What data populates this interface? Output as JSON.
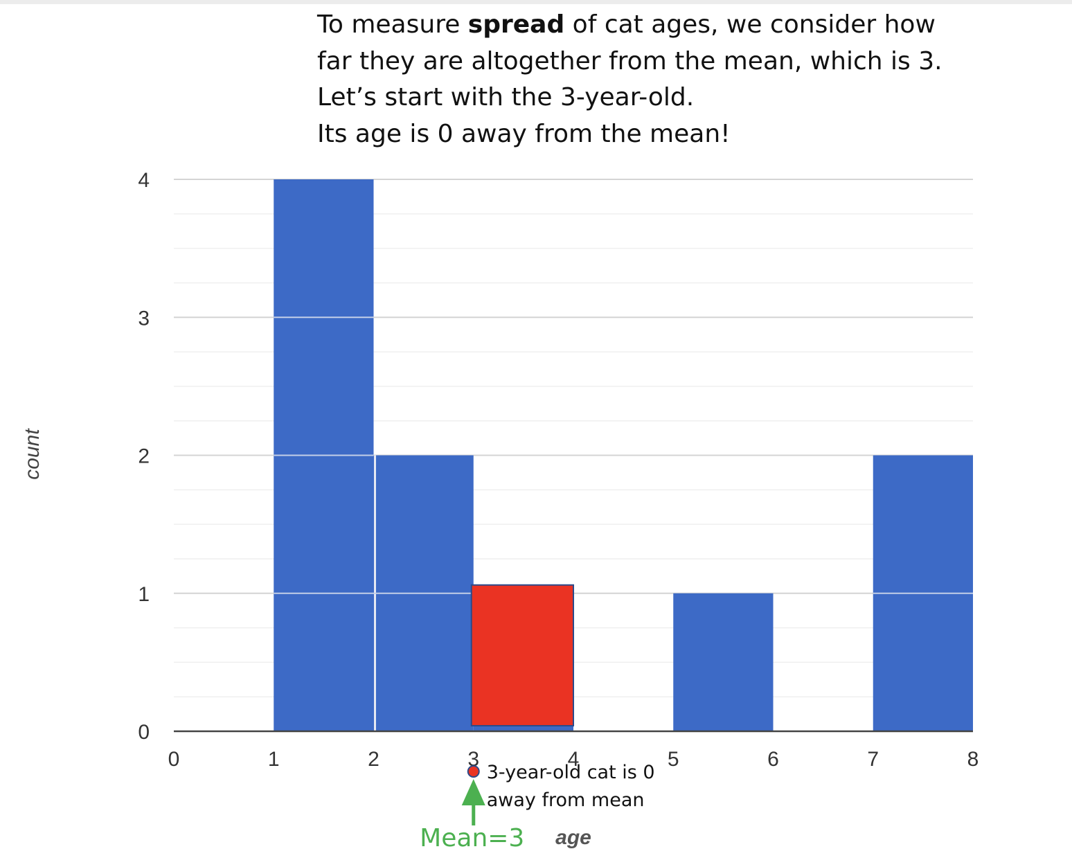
{
  "intro": {
    "line1_pre": "To measure ",
    "line1_bold": "spread",
    "line1_post": " of cat ages, we consider how",
    "line2": "far they are altogether from the mean, which is 3.",
    "line3": "Let’s start with the 3-year-old.",
    "line4": "Its age is 0 away from the mean!"
  },
  "chart_data": {
    "type": "bar",
    "title": "",
    "xlabel": "age",
    "ylabel": "count",
    "xlim": [
      0,
      8
    ],
    "ylim": [
      0,
      4
    ],
    "x_ticks": [
      0,
      1,
      2,
      3,
      4,
      5,
      6,
      7,
      8
    ],
    "y_ticks": [
      0,
      1,
      2,
      3,
      4
    ],
    "grid": true,
    "minor_grid_per_unit": 4,
    "bar_color": "#3d6ac6",
    "bins": [
      {
        "start": 1,
        "end": 2,
        "count": 4
      },
      {
        "start": 2,
        "end": 3,
        "count": 2
      },
      {
        "start": 3,
        "end": 4,
        "count": 1
      },
      {
        "start": 5,
        "end": 6,
        "count": 1
      },
      {
        "start": 7,
        "end": 8,
        "count": 2
      }
    ],
    "highlight": {
      "start": 3,
      "end": 4,
      "count": 1,
      "color": "#ea3323"
    },
    "mean": 3,
    "mean_label": "Mean=3",
    "mean_color": "#4cb050",
    "point": {
      "x": 3,
      "color": "#ea3323"
    },
    "annotation_lines": [
      "3-year-old cat is 0",
      "away from mean"
    ]
  }
}
